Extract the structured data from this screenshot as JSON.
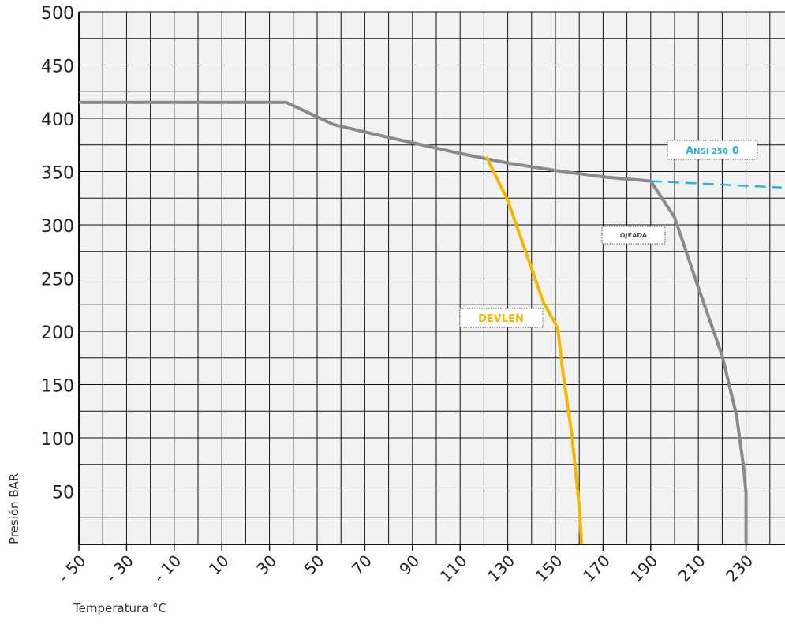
{
  "chart_data": {
    "type": "line",
    "xlabel": "Temperatura °C",
    "ylabel": "Presión BAR",
    "xlim": [
      -50,
      245
    ],
    "ylim": [
      0,
      500
    ],
    "x_ticks": [
      "-50",
      "-30",
      "-10",
      "10",
      "30",
      "50",
      "70",
      "90",
      "110",
      "130",
      "150",
      "170",
      "190",
      "210",
      "230"
    ],
    "y_ticks": [
      "50",
      "100",
      "150",
      "200",
      "250",
      "300",
      "350",
      "400",
      "450",
      "500"
    ],
    "grid": true,
    "colors": {
      "ojeada": "#8a8a8a",
      "devlen": "#f5b800",
      "ansi": "#29b6d6",
      "plot_bg": "#f2f2f2",
      "grid": "#111111"
    },
    "series": [
      {
        "name": "OJEADA",
        "color": "#8a8a8a",
        "style": "solid",
        "points": [
          [
            -50,
            415
          ],
          [
            37,
            415
          ],
          [
            57,
            394
          ],
          [
            80,
            382
          ],
          [
            110,
            367
          ],
          [
            130,
            358
          ],
          [
            150,
            351
          ],
          [
            170,
            345
          ],
          [
            190,
            341
          ],
          [
            200,
            307
          ],
          [
            210,
            241
          ],
          [
            220,
            177
          ],
          [
            226,
            121
          ],
          [
            229,
            72
          ],
          [
            230,
            48
          ],
          [
            230,
            0
          ]
        ]
      },
      {
        "name": "DEVLEN",
        "color": "#f5b800",
        "style": "solid",
        "points": [
          [
            121,
            364
          ],
          [
            130,
            323
          ],
          [
            145,
            227
          ],
          [
            151,
            203
          ],
          [
            153,
            164
          ],
          [
            157,
            101
          ],
          [
            160,
            35
          ],
          [
            161,
            0
          ]
        ]
      },
      {
        "name": "Ansi 250 0",
        "color": "#29b6d6",
        "style": "dashed",
        "points": [
          [
            190,
            341
          ],
          [
            245,
            335
          ]
        ]
      }
    ],
    "annotations": {
      "ansi": {
        "first": "A",
        "rest": "NSI 250",
        "suffix": "0"
      },
      "ojeada": "OJEADA",
      "devlen": "DEVLEN"
    }
  }
}
